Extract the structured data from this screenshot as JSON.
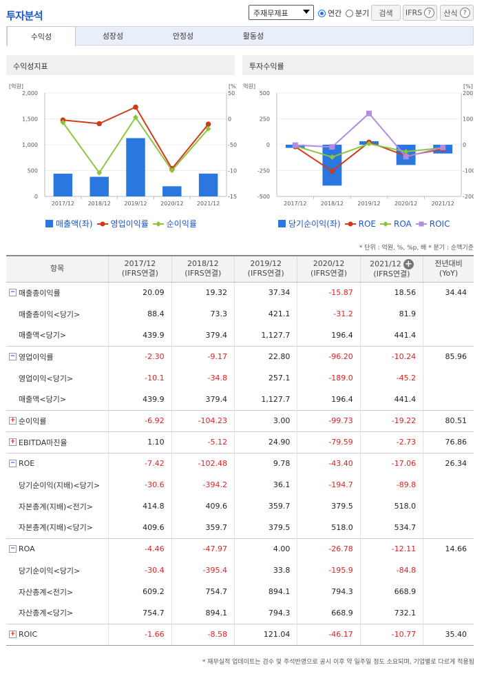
{
  "header": {
    "title": "투자분석",
    "select_value": "주재무제표",
    "radio_annual": "연간",
    "radio_quarter": "분기",
    "search_btn": "검색",
    "ifrs_btn": "IFRS",
    "formula_btn": "산식",
    "help_glyph": "?"
  },
  "tabs": [
    "수익성",
    "성장성",
    "안정성",
    "활동성"
  ],
  "left_panel": {
    "title": "수익성지표",
    "unit_left": "[억원]",
    "unit_right": "[%]",
    "legend": [
      "매출액(좌)",
      "영업이익률",
      "순이익률"
    ]
  },
  "right_panel": {
    "title": "투자수익률",
    "unit_left": "[억원]",
    "unit_right": "[%]",
    "legend": [
      "당기순이익(좌)",
      "ROE",
      "ROA",
      "ROIC"
    ]
  },
  "colors": {
    "bar": "#2a77e0",
    "red": "#d03a1a",
    "green": "#8cc43f",
    "purple": "#b28ce0",
    "negative": "#e02020",
    "accent": "#1c56c5"
  },
  "chart_data": [
    {
      "type": "bar",
      "categories": [
        "2017/12",
        "2018/12",
        "2019/12",
        "2020/12",
        "2021/12"
      ],
      "y_left_ticks": [
        "2,000",
        "1,500",
        "1,000",
        "500",
        "0"
      ],
      "y_right_ticks": [
        "50",
        "0",
        "-50",
        "-100",
        "-150"
      ],
      "ylim_left": [
        0,
        2000
      ],
      "ylim_right": [
        -150,
        50
      ],
      "series": [
        {
          "name": "매출액(좌)",
          "kind": "bar",
          "axis": "left",
          "values": [
            439.9,
            379.4,
            1127.7,
            196.4,
            441.4
          ]
        },
        {
          "name": "영업이익률",
          "kind": "line",
          "axis": "right",
          "values": [
            -2.3,
            -9.17,
            22.8,
            -96.2,
            -10.24
          ]
        },
        {
          "name": "순이익률",
          "kind": "line",
          "axis": "right",
          "values": [
            -6.92,
            -104.23,
            3.0,
            -99.73,
            -19.22
          ]
        }
      ]
    },
    {
      "type": "bar",
      "categories": [
        "2017/12",
        "2018/12",
        "2019/12",
        "2020/12",
        "2021/12"
      ],
      "y_left_ticks": [
        "500",
        "250",
        "0",
        "-250",
        "-500"
      ],
      "y_right_ticks": [
        "200",
        "100",
        "0",
        "-100",
        "-200"
      ],
      "ylim_left": [
        -500,
        500
      ],
      "ylim_right": [
        -200,
        200
      ],
      "series": [
        {
          "name": "당기순이익(좌)",
          "kind": "bar",
          "axis": "left",
          "values": [
            -30.4,
            -395.4,
            33.8,
            -195.9,
            -84.8
          ]
        },
        {
          "name": "ROE",
          "kind": "line",
          "axis": "right",
          "values": [
            -7.42,
            -102.48,
            9.78,
            -43.4,
            -17.06
          ]
        },
        {
          "name": "ROA",
          "kind": "line",
          "axis": "right",
          "values": [
            -4.46,
            -47.97,
            4.0,
            -26.78,
            -12.11
          ]
        },
        {
          "name": "ROIC",
          "kind": "line",
          "axis": "right",
          "values": [
            -1.66,
            -8.58,
            121.04,
            -46.17,
            -10.77
          ]
        }
      ]
    }
  ],
  "note_unit": "* 단위 : 억원, %, %p, 배   * 분기 : 순액기준",
  "table": {
    "headers": [
      {
        "l1": "항목",
        "l2": ""
      },
      {
        "l1": "2017/12",
        "l2": "(IFRS연결)"
      },
      {
        "l1": "2018/12",
        "l2": "(IFRS연결)"
      },
      {
        "l1": "2019/12",
        "l2": "(IFRS연결)"
      },
      {
        "l1": "2020/12",
        "l2": "(IFRS연결)"
      },
      {
        "l1": "2021/12",
        "l2": "(IFRS연결)"
      },
      {
        "l1": "전년대비",
        "l2": "(YoY)"
      }
    ],
    "rows": [
      {
        "label": "매출총이익률",
        "icon": "minus",
        "sub": false,
        "grp": true,
        "vals": [
          "20.09",
          "19.32",
          "37.34",
          "-15.87",
          "18.56"
        ],
        "yoy": "34.44"
      },
      {
        "label": "매출총이익<당기>",
        "icon": "",
        "sub": true,
        "grp": false,
        "vals": [
          "88.4",
          "73.3",
          "421.1",
          "-31.2",
          "81.9"
        ],
        "yoy": ""
      },
      {
        "label": "매출액<당기>",
        "icon": "",
        "sub": true,
        "grp": false,
        "vals": [
          "439.9",
          "379.4",
          "1,127.7",
          "196.4",
          "441.4"
        ],
        "yoy": ""
      },
      {
        "label": "영업이익률",
        "icon": "minus",
        "sub": false,
        "grp": true,
        "vals": [
          "-2.30",
          "-9.17",
          "22.80",
          "-96.20",
          "-10.24"
        ],
        "yoy": "85.96"
      },
      {
        "label": "영업이익<당기>",
        "icon": "",
        "sub": true,
        "grp": false,
        "vals": [
          "-10.1",
          "-34.8",
          "257.1",
          "-189.0",
          "-45.2"
        ],
        "yoy": ""
      },
      {
        "label": "매출액<당기>",
        "icon": "",
        "sub": true,
        "grp": false,
        "vals": [
          "439.9",
          "379.4",
          "1,127.7",
          "196.4",
          "441.4"
        ],
        "yoy": ""
      },
      {
        "label": "순이익률",
        "icon": "plus",
        "sub": false,
        "grp": true,
        "vals": [
          "-6.92",
          "-104.23",
          "3.00",
          "-99.73",
          "-19.22"
        ],
        "yoy": "80.51"
      },
      {
        "label": "EBITDA마진율",
        "icon": "plus",
        "sub": false,
        "grp": true,
        "vals": [
          "1.10",
          "-5.12",
          "24.90",
          "-79.59",
          "-2.73"
        ],
        "yoy": "76.86"
      },
      {
        "label": "ROE",
        "icon": "minus",
        "sub": false,
        "grp": true,
        "vals": [
          "-7.42",
          "-102.48",
          "9.78",
          "-43.40",
          "-17.06"
        ],
        "yoy": "26.34"
      },
      {
        "label": "당기순이익(지배)<당기>",
        "icon": "",
        "sub": true,
        "grp": false,
        "vals": [
          "-30.6",
          "-394.2",
          "36.1",
          "-194.7",
          "-89.8"
        ],
        "yoy": ""
      },
      {
        "label": "자본총계(지배)<전기>",
        "icon": "",
        "sub": true,
        "grp": false,
        "vals": [
          "414.8",
          "409.6",
          "359.7",
          "379.5",
          "518.0"
        ],
        "yoy": ""
      },
      {
        "label": "자본총계(지배)<당기>",
        "icon": "",
        "sub": true,
        "grp": false,
        "vals": [
          "409.6",
          "359.7",
          "379.5",
          "518.0",
          "534.7"
        ],
        "yoy": ""
      },
      {
        "label": "ROA",
        "icon": "minus",
        "sub": false,
        "grp": true,
        "vals": [
          "-4.46",
          "-47.97",
          "4.00",
          "-26.78",
          "-12.11"
        ],
        "yoy": "14.66"
      },
      {
        "label": "당기순이익<당기>",
        "icon": "",
        "sub": true,
        "grp": false,
        "vals": [
          "-30.4",
          "-395.4",
          "33.8",
          "-195.9",
          "-84.8"
        ],
        "yoy": ""
      },
      {
        "label": "자산총계<전기>",
        "icon": "",
        "sub": true,
        "grp": false,
        "vals": [
          "609.2",
          "754.7",
          "894.1",
          "794.3",
          "668.9"
        ],
        "yoy": ""
      },
      {
        "label": "자산총계<당기>",
        "icon": "",
        "sub": true,
        "grp": false,
        "vals": [
          "754.7",
          "894.1",
          "794.3",
          "668.9",
          "732.1"
        ],
        "yoy": ""
      },
      {
        "label": "ROIC",
        "icon": "plus",
        "sub": false,
        "grp": true,
        "vals": [
          "-1.66",
          "-8.58",
          "121.04",
          "-46.17",
          "-10.77"
        ],
        "yoy": "35.40"
      }
    ]
  },
  "footer_note": "* 재무실적 업데이트는 검수 및 주석반영으로 공시 이후 약 일주일 정도 소요되며, 기업별로 다르게 적용됨"
}
